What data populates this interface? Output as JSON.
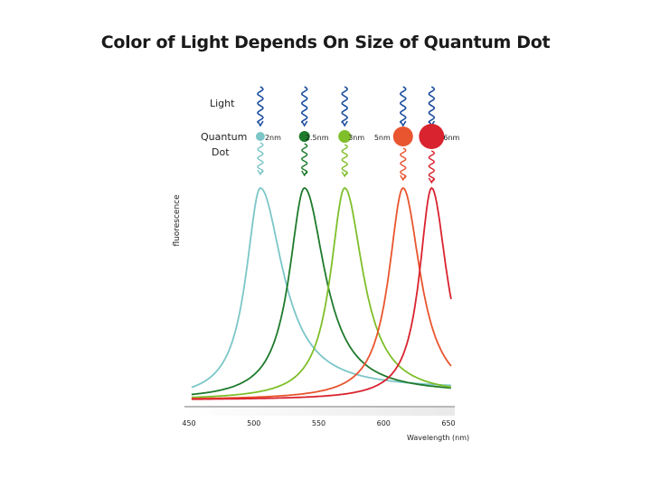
{
  "chart_data": {
    "type": "line",
    "title": "Color of Light Depends On Size of Quantum Dot",
    "xlabel": "Wavelength (nm)",
    "ylabel": "fluorescence",
    "xlim": [
      450,
      650
    ],
    "ylim": [
      0,
      1
    ],
    "x_ticks": [
      "450",
      "500",
      "550",
      "600",
      "650"
    ],
    "grid": false,
    "row_labels": {
      "light": "Light",
      "quantum_dot": [
        "Quantum",
        "Dot"
      ]
    },
    "series": [
      {
        "name": "2nm",
        "color": "#7cc6c8",
        "peak": 505,
        "width_left": 14,
        "width_right": 22,
        "tail": 0.05
      },
      {
        "name": "2.5nm",
        "color": "#1e7a2c",
        "peak": 539,
        "width_left": 15,
        "width_right": 20,
        "tail": 0.03
      },
      {
        "name": "3nm",
        "color": "#7fbf2a",
        "peak": 570,
        "width_left": 14,
        "width_right": 18,
        "tail": 0.02
      },
      {
        "name": "5nm",
        "color": "#e8552e",
        "peak": 615,
        "width_left": 14,
        "width_right": 17,
        "tail": 0.0
      },
      {
        "name": "6nm",
        "color": "#d9232f",
        "peak": 637,
        "width_left": 12,
        "width_right": 15,
        "tail": 0.0
      }
    ]
  }
}
